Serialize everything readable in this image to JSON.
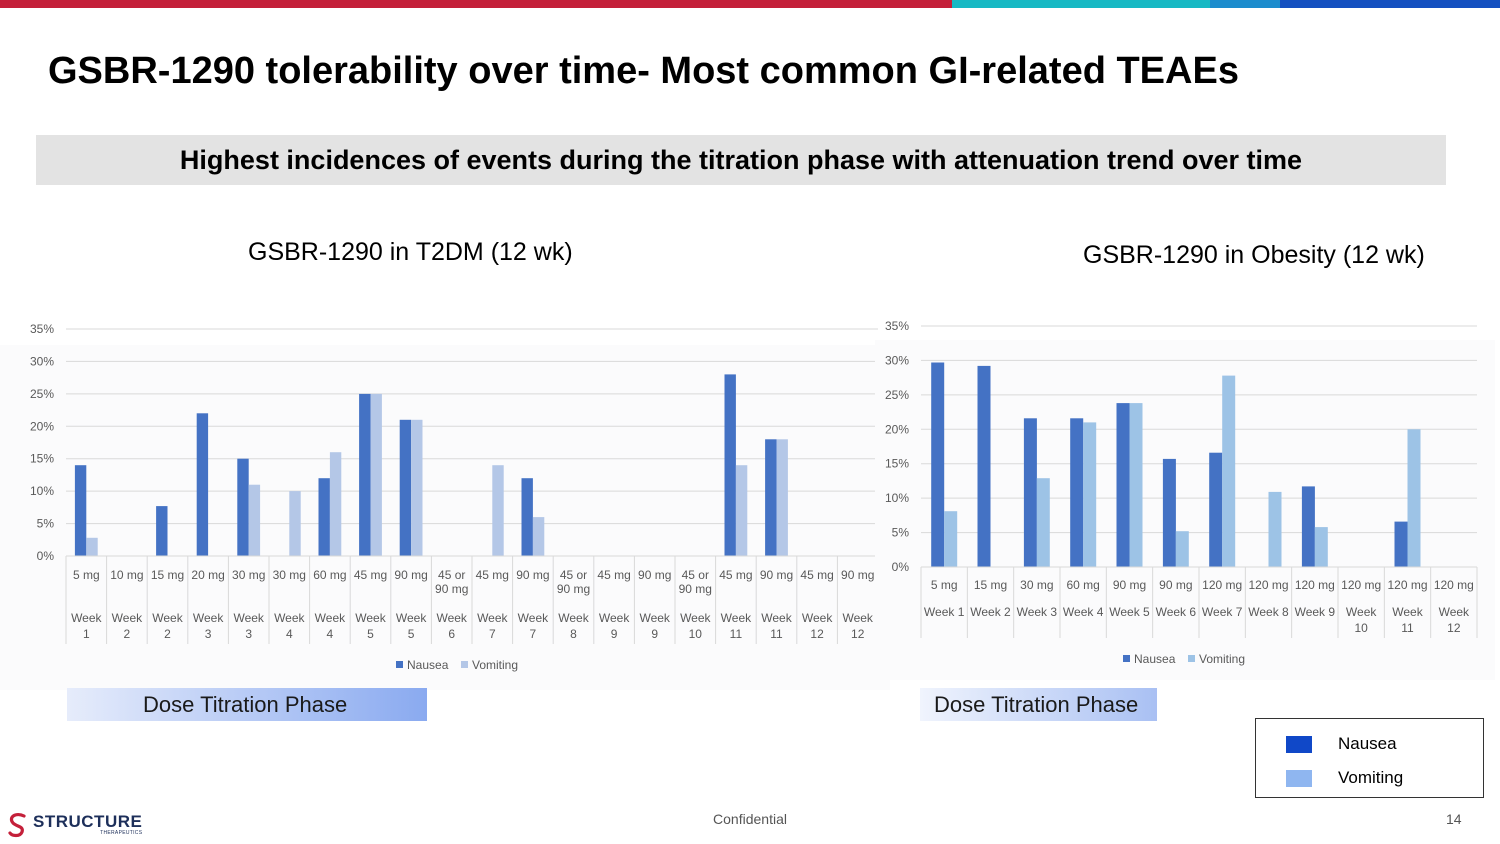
{
  "slide": {
    "title": "GSBR-1290 tolerability over time- Most common GI-related TEAEs",
    "banner": "Highest incidences of events during the titration phase with attenuation trend over time",
    "confidential": "Confidential",
    "page_number": "14",
    "logo": {
      "name": "STRUCTURE",
      "sub": "THERAPEUTICS"
    },
    "legend": {
      "nausea": "Nausea",
      "vomiting": "Vomiting"
    },
    "phase_label_left": "Dose Titration Phase",
    "phase_label_right": "Dose Titration Phase",
    "colors": {
      "topbar": [
        "#c4203a",
        "#17b9c4",
        "#1c8ccd",
        "#1450c0"
      ],
      "legend_nausea": "#1048c8",
      "legend_vomiting": "#8fb6f0",
      "banner_bg": "#e3e3e3"
    }
  },
  "chart_data": [
    {
      "type": "bar",
      "title": "GSBR-1290 in T2DM (12 wk)",
      "categories": [
        {
          "dose": [
            "5 mg"
          ],
          "week": [
            "Week",
            "1"
          ]
        },
        {
          "dose": [
            "10 mg"
          ],
          "week": [
            "Week",
            "2"
          ]
        },
        {
          "dose": [
            "15 mg"
          ],
          "week": [
            "Week",
            "2"
          ]
        },
        {
          "dose": [
            "20 mg"
          ],
          "week": [
            "Week",
            "3"
          ]
        },
        {
          "dose": [
            "30 mg"
          ],
          "week": [
            "Week",
            "3"
          ]
        },
        {
          "dose": [
            "30 mg"
          ],
          "week": [
            "Week",
            "4"
          ]
        },
        {
          "dose": [
            "60 mg"
          ],
          "week": [
            "Week",
            "4"
          ]
        },
        {
          "dose": [
            "45 mg"
          ],
          "week": [
            "Week",
            "5"
          ]
        },
        {
          "dose": [
            "90 mg"
          ],
          "week": [
            "Week",
            "5"
          ]
        },
        {
          "dose": [
            "45 or",
            "90 mg"
          ],
          "week": [
            "Week",
            "6"
          ]
        },
        {
          "dose": [
            "45 mg"
          ],
          "week": [
            "Week",
            "7"
          ]
        },
        {
          "dose": [
            "90 mg"
          ],
          "week": [
            "Week",
            "7"
          ]
        },
        {
          "dose": [
            "45 or",
            "90 mg"
          ],
          "week": [
            "Week",
            "8"
          ]
        },
        {
          "dose": [
            "45 mg"
          ],
          "week": [
            "Week",
            "9"
          ]
        },
        {
          "dose": [
            "90 mg"
          ],
          "week": [
            "Week",
            "9"
          ]
        },
        {
          "dose": [
            "45 or",
            "90 mg"
          ],
          "week": [
            "Week",
            "10"
          ]
        },
        {
          "dose": [
            "45 mg"
          ],
          "week": [
            "Week",
            "11"
          ]
        },
        {
          "dose": [
            "90 mg"
          ],
          "week": [
            "Week",
            "11"
          ]
        },
        {
          "dose": [
            "45 mg"
          ],
          "week": [
            "Week",
            "12"
          ]
        },
        {
          "dose": [
            "90 mg"
          ],
          "week": [
            "Week",
            "12"
          ]
        }
      ],
      "series": [
        {
          "name": "Nausea",
          "color": "#4472c4",
          "values": [
            14,
            0,
            7.7,
            22,
            15,
            0,
            12,
            25,
            21,
            0,
            0,
            12,
            0,
            0,
            0,
            0,
            28,
            18,
            0,
            0
          ]
        },
        {
          "name": "Vomiting",
          "color": "#b4c7e7",
          "values": [
            2.8,
            0,
            0,
            0,
            11,
            10,
            16,
            25,
            21,
            0,
            14,
            6,
            0,
            0,
            0,
            0,
            14,
            18,
            0,
            0
          ]
        }
      ],
      "ylim": [
        0,
        35
      ],
      "yticks": [
        "0%",
        "5%",
        "10%",
        "15%",
        "20%",
        "25%",
        "30%",
        "35%"
      ],
      "legend_position": "bottom",
      "grid": true
    },
    {
      "type": "bar",
      "title": "GSBR-1290 in Obesity (12 wk)",
      "categories": [
        {
          "dose": [
            "5 mg"
          ],
          "week": [
            "Week 1"
          ]
        },
        {
          "dose": [
            "15 mg"
          ],
          "week": [
            "Week 2"
          ]
        },
        {
          "dose": [
            "30 mg"
          ],
          "week": [
            "Week 3"
          ]
        },
        {
          "dose": [
            "60 mg"
          ],
          "week": [
            "Week 4"
          ]
        },
        {
          "dose": [
            "90 mg"
          ],
          "week": [
            "Week 5"
          ]
        },
        {
          "dose": [
            "90 mg"
          ],
          "week": [
            "Week 6"
          ]
        },
        {
          "dose": [
            "120 mg"
          ],
          "week": [
            "Week 7"
          ]
        },
        {
          "dose": [
            "120 mg"
          ],
          "week": [
            "Week 8"
          ]
        },
        {
          "dose": [
            "120 mg"
          ],
          "week": [
            "Week 9"
          ]
        },
        {
          "dose": [
            "120 mg"
          ],
          "week": [
            "Week",
            "10"
          ]
        },
        {
          "dose": [
            "120 mg"
          ],
          "week": [
            "Week",
            "11"
          ]
        },
        {
          "dose": [
            "120 mg"
          ],
          "week": [
            "Week",
            "12"
          ]
        }
      ],
      "series": [
        {
          "name": "Nausea",
          "color": "#4472c4",
          "values": [
            29.7,
            29.2,
            21.6,
            21.6,
            23.8,
            15.7,
            16.6,
            0,
            11.7,
            0,
            6.6,
            0
          ]
        },
        {
          "name": "Vomiting",
          "color": "#9dc3e6",
          "values": [
            8.1,
            0,
            12.9,
            21,
            23.8,
            5.2,
            27.8,
            10.9,
            5.8,
            0,
            20,
            0
          ]
        }
      ],
      "ylim": [
        0,
        35
      ],
      "yticks": [
        "0%",
        "5%",
        "10%",
        "15%",
        "20%",
        "25%",
        "30%",
        "35%"
      ],
      "legend_position": "bottom",
      "grid": true
    }
  ]
}
